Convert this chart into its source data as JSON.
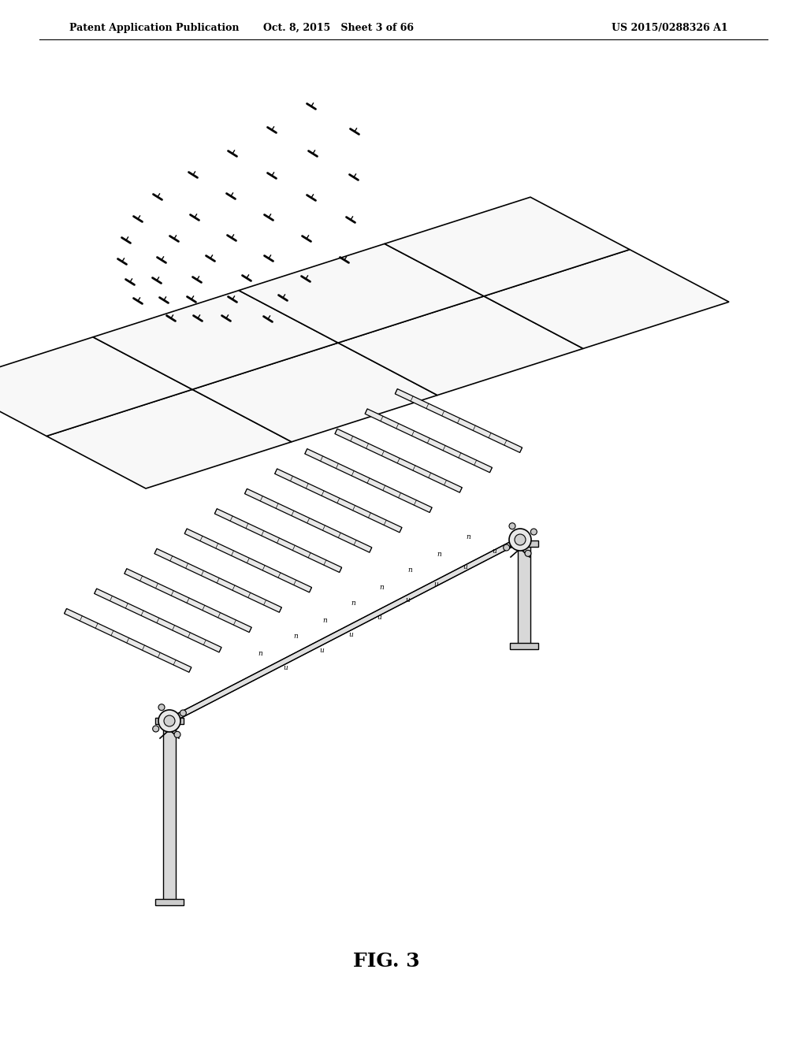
{
  "header_left": "Patent Application Publication",
  "header_mid": "Oct. 8, 2015   Sheet 3 of 66",
  "header_right": "US 2015/0288326 A1",
  "figure_label": "FIG. 3",
  "bg_color": "#ffffff",
  "line_color": "#000000",
  "header_fontsize": 9,
  "fig_label_fontsize": 18
}
